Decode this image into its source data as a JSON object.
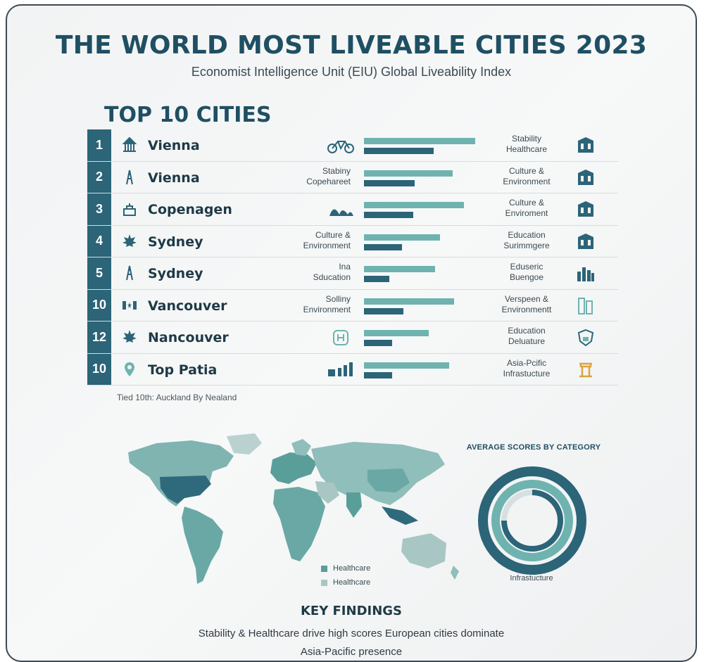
{
  "header": {
    "title": "THE WORLD MOST LIVEABLE CITIES 2023",
    "subtitle": "Economist Intelligence Unit (EIU) Global Liveability Index"
  },
  "top10": {
    "title": "TOP 10 CITIES",
    "rows": [
      {
        "rank": "1",
        "city": "Vienna",
        "city_icon": "landmark-icon",
        "mid_label": "",
        "mid_icon": "bicycle-icon",
        "bar_a": 0.88,
        "bar_b": 0.55,
        "right_label": "Stability\nHealthcare",
        "right_icon": "building-icon"
      },
      {
        "rank": "2",
        "city": "Vienna",
        "city_icon": "tower-icon",
        "mid_label": "Stabiny\nCopehareet",
        "mid_icon": "",
        "bar_a": 0.7,
        "bar_b": 0.4,
        "right_label": "Culture &\nEnvironment",
        "right_icon": "building-icon"
      },
      {
        "rank": "3",
        "city": "Copenagen",
        "city_icon": "palace-icon",
        "mid_label": "",
        "mid_icon": "opera-house-icon",
        "bar_a": 0.79,
        "bar_b": 0.39,
        "right_label": "Culture &\nEnviroment",
        "right_icon": "building-icon"
      },
      {
        "rank": "4",
        "city": "Sydney",
        "city_icon": "maple-leaf-icon",
        "mid_label": "Culture &\nEnvironment",
        "mid_icon": "",
        "bar_a": 0.6,
        "bar_b": 0.3,
        "right_label": "Education\nSurimmgere",
        "right_icon": "building-icon"
      },
      {
        "rank": "5",
        "city": "Sydney",
        "city_icon": "tower-icon",
        "mid_label": "Ina\nSducation",
        "mid_icon": "",
        "bar_a": 0.56,
        "bar_b": 0.2,
        "right_label": "Eduseric\nBuengoe",
        "right_icon": "skyline-icon"
      },
      {
        "rank": "10",
        "city": "Vancouver",
        "city_icon": "flag-icon",
        "mid_label": "Solliny\nEnvironment",
        "mid_icon": "",
        "bar_a": 0.71,
        "bar_b": 0.31,
        "right_label": "Verspeen &\nEnvironmentt",
        "right_icon": "skyscraper-icon"
      },
      {
        "rank": "12",
        "city": "Nancouver",
        "city_icon": "maple-leaf-icon",
        "mid_label": "",
        "mid_icon": "clinic-icon",
        "bar_a": 0.51,
        "bar_b": 0.22,
        "right_label": "Education\nDeluature",
        "right_icon": "shield-icon"
      },
      {
        "rank": "10",
        "city": "Top Patia",
        "city_icon": "location-pin-icon",
        "mid_label": "",
        "mid_icon": "chart-icon",
        "bar_a": 0.67,
        "bar_b": 0.22,
        "right_label": "Asia-Pcific\nInfrastucture",
        "right_icon": "temple-icon"
      }
    ],
    "footnote": "Tied 10th: Auckland By Nealand"
  },
  "map": {
    "legend": [
      {
        "label": "Healthcare",
        "color": "#5a9e9a"
      },
      {
        "label": "Healthcare",
        "color": "#a8c6c4"
      }
    ]
  },
  "scores": {
    "title": "AVERAGE SCORES BY CATEGORY",
    "label": "Infrastucture"
  },
  "key_findings": {
    "title": "KEY FINDINGS",
    "line1": "Stability & Healthcare drive high scores  European cities dominate",
    "line2": "Asia-Pacific presence"
  },
  "colors": {
    "primary": "#2c6478",
    "accent": "#6fb3b0",
    "title": "#1f4f63"
  }
}
